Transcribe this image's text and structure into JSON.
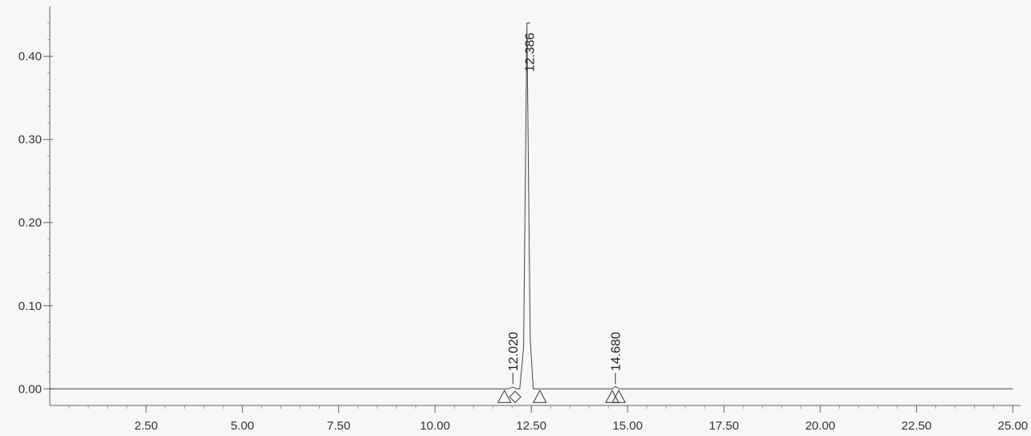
{
  "chart_data": {
    "type": "line",
    "title": "",
    "xlabel": "",
    "ylabel": "",
    "xlim": [
      0.0,
      25.2
    ],
    "ylim": [
      -0.02,
      0.46
    ],
    "x_ticks": [
      {
        "value": 2.5,
        "label": "2.50"
      },
      {
        "value": 5.0,
        "label": "5.00"
      },
      {
        "value": 7.5,
        "label": "7.50"
      },
      {
        "value": 10.0,
        "label": "10.00"
      },
      {
        "value": 12.5,
        "label": "12.50"
      },
      {
        "value": 15.0,
        "label": "15.00"
      },
      {
        "value": 17.5,
        "label": "17.50"
      },
      {
        "value": 20.0,
        "label": "20.00"
      },
      {
        "value": 22.5,
        "label": "22.50"
      },
      {
        "value": 25.0,
        "label": "25.00"
      }
    ],
    "y_ticks": [
      {
        "value": 0.0,
        "label": "0.00"
      },
      {
        "value": 0.1,
        "label": "0.10"
      },
      {
        "value": 0.2,
        "label": "0.20"
      },
      {
        "value": 0.3,
        "label": "0.30"
      },
      {
        "value": 0.4,
        "label": "0.40"
      }
    ],
    "series": [
      {
        "x": [
          0.0,
          11.7,
          11.9,
          12.02,
          12.12,
          12.2,
          12.3,
          12.386,
          12.47,
          12.55,
          12.7,
          14.5,
          14.6,
          14.68,
          14.78,
          14.9,
          25.0
        ],
        "y": [
          0.0,
          0.0,
          0.0,
          0.002,
          0.0,
          0.0,
          0.05,
          0.44,
          0.06,
          0.0,
          0.0,
          0.0,
          0.0,
          0.003,
          0.0,
          0.0,
          0.0
        ]
      }
    ],
    "peaks": [
      {
        "time": 12.386,
        "label": "12.386",
        "height": 0.44
      },
      {
        "time": 12.02,
        "label": "12.020",
        "height": 0.002
      },
      {
        "time": 14.68,
        "label": "14.680",
        "height": 0.003
      }
    ],
    "integration_markers": [
      {
        "x": 11.8,
        "shape": "triangle"
      },
      {
        "x": 12.08,
        "shape": "diamond"
      },
      {
        "x": 12.72,
        "shape": "triangle"
      },
      {
        "x": 14.6,
        "shape": "triangle"
      },
      {
        "x": 14.77,
        "shape": "triangle"
      }
    ],
    "grid": false,
    "legend": "none"
  }
}
